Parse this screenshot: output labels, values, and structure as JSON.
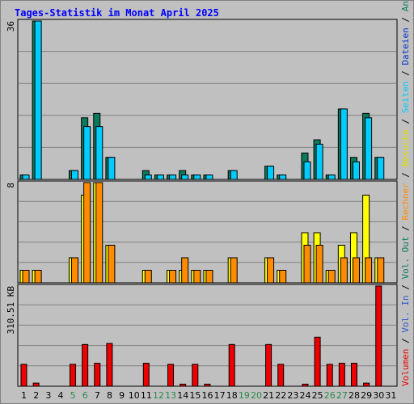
{
  "window": {
    "title": "Tages-Statistik im Monat April 2025"
  },
  "colors": {
    "background": "#c0c0c0",
    "plot_background": "#c0c0c0",
    "grid": "#808080",
    "anfragen": "#0b7a5c",
    "dateien": "#00ccff",
    "besuche": "#ffff00",
    "rechner": "#ff8c00",
    "volumen": "#ee0000",
    "weekend_label": "#2a8a4a",
    "text": "#000000"
  },
  "chart_data": [
    {
      "type": "bar",
      "panel": "top",
      "ymax_label": "36",
      "ylim": [
        0,
        36
      ],
      "categories": [
        "1",
        "2",
        "3",
        "4",
        "5",
        "6",
        "7",
        "8",
        "9",
        "10",
        "11",
        "12",
        "13",
        "14",
        "15",
        "16",
        "17",
        "18",
        "19",
        "20",
        "21",
        "22",
        "23",
        "24",
        "25",
        "26",
        "27",
        "28",
        "29",
        "30",
        "31"
      ],
      "weekend_days": [
        "5",
        "6",
        "12",
        "13",
        "19",
        "20",
        "26",
        "27"
      ],
      "series": [
        {
          "name": "Anfragen",
          "values": [
            1,
            36,
            0,
            0,
            2,
            14,
            15,
            5,
            0,
            0,
            2,
            1,
            1,
            2,
            1,
            1,
            0,
            2,
            0,
            0,
            3,
            1,
            0,
            6,
            9,
            1,
            16,
            5,
            15,
            5,
            0
          ]
        },
        {
          "name": "Dateien",
          "values": [
            1,
            36,
            0,
            0,
            2,
            12,
            12,
            5,
            0,
            0,
            1,
            1,
            1,
            1,
            1,
            1,
            0,
            2,
            0,
            0,
            3,
            1,
            0,
            4,
            8,
            1,
            16,
            4,
            14,
            5,
            0
          ]
        },
        {
          "name": "Seiten",
          "values": [
            0,
            0,
            0,
            0,
            0,
            0,
            0,
            0,
            0,
            0,
            0,
            0,
            0,
            0,
            0,
            0,
            0,
            0,
            0,
            0,
            0,
            0,
            0,
            0,
            0,
            0,
            0,
            0,
            0,
            0,
            0
          ]
        }
      ]
    },
    {
      "type": "bar",
      "panel": "middle",
      "ymax_label": "8",
      "ylim": [
        0,
        8
      ],
      "categories": [
        "1",
        "2",
        "3",
        "4",
        "5",
        "6",
        "7",
        "8",
        "9",
        "10",
        "11",
        "12",
        "13",
        "14",
        "15",
        "16",
        "17",
        "18",
        "19",
        "20",
        "21",
        "22",
        "23",
        "24",
        "25",
        "26",
        "27",
        "28",
        "29",
        "30",
        "31"
      ],
      "series": [
        {
          "name": "Besuche",
          "values": [
            1,
            1,
            0,
            0,
            2,
            7,
            8,
            3,
            0,
            0,
            1,
            0,
            1,
            1,
            1,
            1,
            0,
            2,
            0,
            0,
            2,
            1,
            0,
            4,
            4,
            1,
            3,
            4,
            7,
            2,
            0
          ]
        },
        {
          "name": "Rechner",
          "values": [
            1,
            1,
            0,
            0,
            2,
            8,
            8,
            3,
            0,
            0,
            1,
            0,
            1,
            2,
            1,
            1,
            0,
            2,
            0,
            0,
            2,
            1,
            0,
            3,
            3,
            1,
            2,
            2,
            2,
            2,
            0
          ]
        }
      ]
    },
    {
      "type": "bar",
      "panel": "bottom",
      "ymax_label": "310.51 KB",
      "categories": [
        "1",
        "2",
        "3",
        "4",
        "5",
        "6",
        "7",
        "8",
        "9",
        "10",
        "11",
        "12",
        "13",
        "14",
        "15",
        "16",
        "17",
        "18",
        "19",
        "20",
        "21",
        "22",
        "23",
        "24",
        "25",
        "26",
        "27",
        "28",
        "29",
        "30",
        "31"
      ],
      "series": [
        {
          "name": "Volumen",
          "values": [
            21,
            3,
            0,
            0,
            21,
            40,
            22,
            41,
            0,
            0,
            22,
            0,
            21,
            2,
            21,
            2,
            0,
            40,
            0,
            0,
            40,
            21,
            0,
            2,
            47,
            21,
            22,
            22,
            3,
            96,
            0
          ]
        }
      ]
    }
  ],
  "right_legend": [
    {
      "text": "Volumen",
      "color": "#ee0000"
    },
    {
      "text": " / ",
      "color": "#000000"
    },
    {
      "text": "Vol. In",
      "color": "#3355cc"
    },
    {
      "text": " / ",
      "color": "#000000"
    },
    {
      "text": "Vol. Out",
      "color": "#0b7a5c"
    },
    {
      "text": " / ",
      "color": "#000000"
    },
    {
      "text": "Rechner",
      "color": "#ff8c00"
    },
    {
      "text": " / ",
      "color": "#000000"
    },
    {
      "text": "Besuche",
      "color": "#dddd00"
    },
    {
      "text": " / ",
      "color": "#000000"
    },
    {
      "text": "Seiten",
      "color": "#00ccff"
    },
    {
      "text": " / ",
      "color": "#000000"
    },
    {
      "text": "Dateien",
      "color": "#0033cc"
    },
    {
      "text": " / ",
      "color": "#000000"
    },
    {
      "text": "Anfragen",
      "color": "#0b7a5c"
    }
  ]
}
